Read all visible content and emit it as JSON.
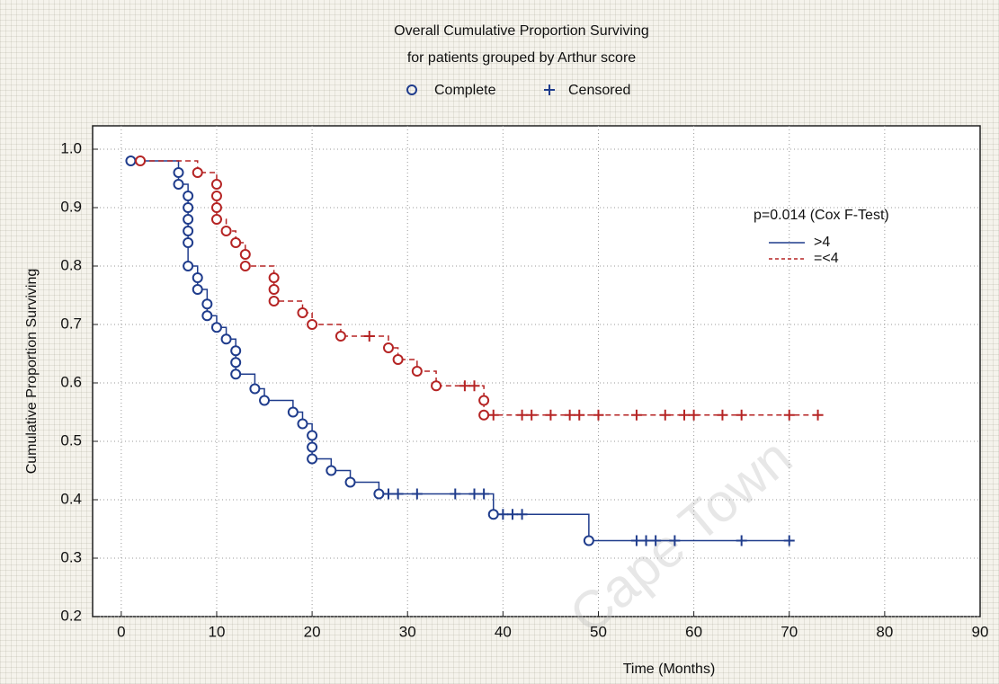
{
  "chart_data": {
    "type": "survival",
    "title": "Overall Cumulative Proportion Surviving",
    "subtitle": "for patients grouped by Arthur score",
    "marker_legend": {
      "complete": "Complete",
      "censored": "Censored"
    },
    "annotation": "p=0.014 (Cox F-Test)",
    "watermark": "Cape Town",
    "x_label": "Time (Months)",
    "y_label": "Cumulative Proportion Surviving",
    "xlim": [
      -3,
      90
    ],
    "xticks": [
      0,
      10,
      20,
      30,
      40,
      50,
      60,
      70,
      80,
      90
    ],
    "ylim": [
      0.2,
      1.04
    ],
    "yticks": [
      0.2,
      0.3,
      0.4,
      0.5,
      0.6,
      0.7,
      0.8,
      0.9,
      {
        "value": 1,
        "label": "1.0"
      }
    ],
    "grid": true,
    "series": [
      {
        "name": ">4",
        "color": "#1f3c8c",
        "dash": false,
        "x": [
          1,
          6,
          6,
          7,
          7,
          7,
          7,
          7,
          7,
          8,
          8,
          9,
          9,
          10,
          11,
          12,
          12,
          12,
          14,
          15,
          18,
          19,
          20,
          20,
          20,
          22,
          24,
          27,
          39,
          49
        ],
        "values": [
          0.98,
          0.96,
          0.94,
          0.92,
          0.9,
          0.88,
          0.86,
          0.84,
          0.8,
          0.78,
          0.76,
          0.735,
          0.715,
          0.695,
          0.675,
          0.655,
          0.635,
          0.615,
          0.59,
          0.57,
          0.55,
          0.53,
          0.51,
          0.49,
          0.47,
          0.45,
          0.43,
          0.41,
          0.375,
          0.33
        ],
        "censored_x": [
          28,
          29,
          31,
          35,
          37,
          38,
          40,
          41,
          42,
          54,
          55,
          56,
          58,
          65,
          70
        ],
        "censored_values": [
          0.41,
          0.41,
          0.41,
          0.41,
          0.41,
          0.41,
          0.375,
          0.375,
          0.375,
          0.33,
          0.33,
          0.33,
          0.33,
          0.33,
          0.33
        ]
      },
      {
        "name": "=<4",
        "color": "#b52424",
        "dash": true,
        "x": [
          2,
          8,
          10,
          10,
          10,
          10,
          11,
          12,
          13,
          13,
          16,
          16,
          16,
          19,
          20,
          23,
          28,
          29,
          31,
          33,
          38,
          38
        ],
        "values": [
          0.98,
          0.96,
          0.94,
          0.92,
          0.9,
          0.88,
          0.86,
          0.84,
          0.82,
          0.8,
          0.78,
          0.76,
          0.74,
          0.72,
          0.7,
          0.68,
          0.66,
          0.64,
          0.62,
          0.595,
          0.57,
          0.545
        ],
        "censored_x": [
          26,
          36,
          37,
          39,
          42,
          43,
          45,
          47,
          48,
          50,
          54,
          57,
          59,
          60,
          63,
          65,
          70,
          73
        ],
        "censored_values": [
          0.68,
          0.595,
          0.595,
          0.545,
          0.545,
          0.545,
          0.545,
          0.545,
          0.545,
          0.545,
          0.545,
          0.545,
          0.545,
          0.545,
          0.545,
          0.545,
          0.545,
          0.545
        ]
      }
    ]
  }
}
